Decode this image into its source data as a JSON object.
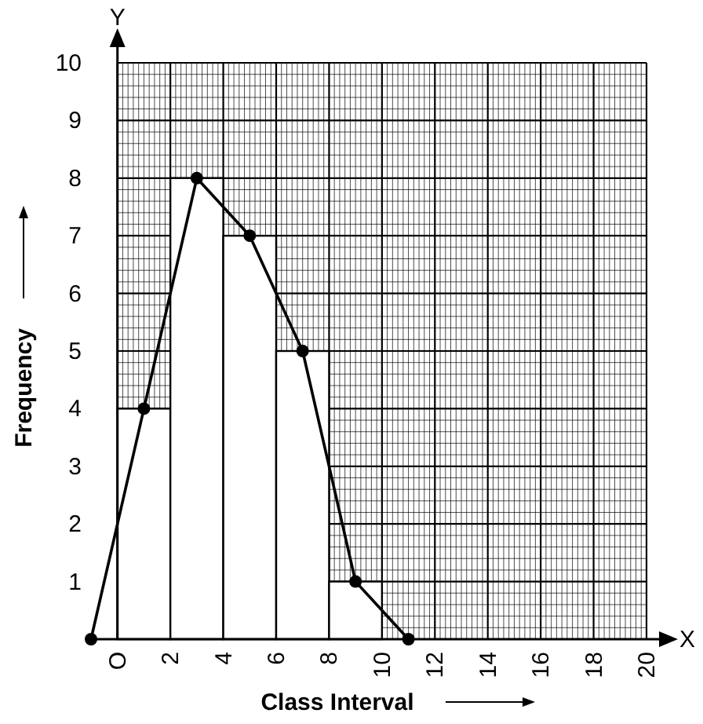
{
  "chart_data": {
    "type": "histogram",
    "xlabel": "Class Interval",
    "ylabel": "Frequency",
    "bins": [
      0,
      2,
      4,
      6,
      8,
      10
    ],
    "values": [
      4,
      8,
      7,
      5,
      1
    ],
    "color": "#ffffff",
    "series": [
      {
        "type": "line",
        "x": [
          -1,
          1,
          3,
          5,
          7,
          9,
          11
        ],
        "values": [
          0,
          4,
          8,
          7,
          5,
          1,
          0
        ],
        "color": "#000000",
        "marker": "circle"
      }
    ],
    "xlim": [
      -1,
      20
    ],
    "ylim": [
      0,
      10
    ],
    "xticks": [
      {
        "value": 0,
        "label": "O"
      },
      2,
      4,
      6,
      8,
      10,
      12,
      14,
      16,
      18,
      20
    ],
    "yticks": [
      1,
      2,
      3,
      4,
      5,
      6,
      7,
      8,
      9,
      10
    ],
    "grid": true,
    "annotations": [
      "Y",
      "X"
    ]
  }
}
